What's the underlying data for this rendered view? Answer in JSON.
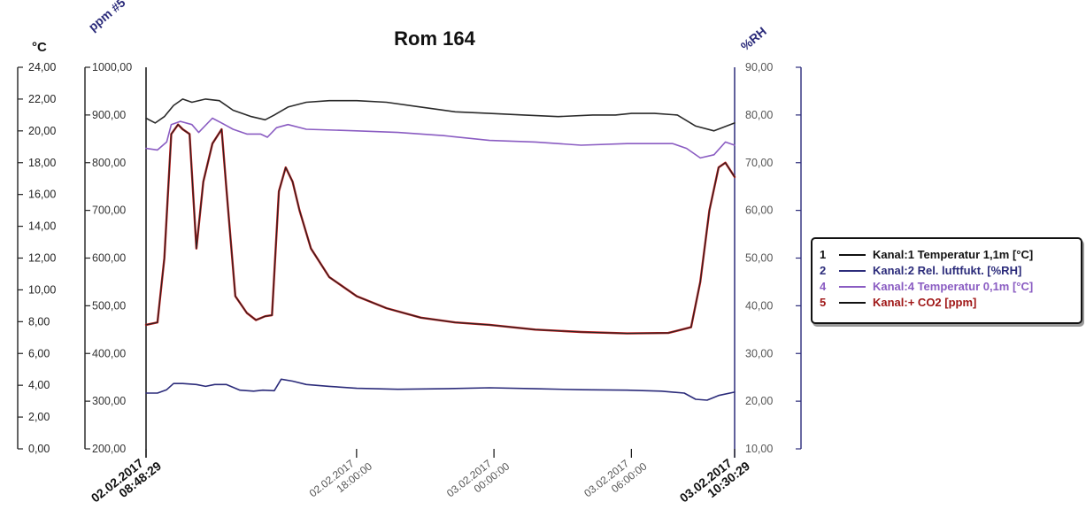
{
  "chart_data": {
    "type": "line",
    "title": "Rom 164",
    "axes": {
      "left_temp": {
        "label": "°C",
        "ticks": [
          "24,00",
          "22,00",
          "20,00",
          "18,00",
          "16,00",
          "14,00",
          "12,00",
          "10,00",
          "8,00",
          "6,00",
          "4,00",
          "2,00",
          "0,00"
        ],
        "range": [
          0,
          24
        ]
      },
      "left_ppm": {
        "label": "ppm #5",
        "ticks": [
          "1000,00",
          "900,00",
          "800,00",
          "700,00",
          "600,00",
          "500,00",
          "400,00",
          "300,00",
          "200,00"
        ],
        "range": [
          200,
          1000
        ]
      },
      "right_rh": {
        "label": "%RH",
        "ticks": [
          "90,00",
          "80,00",
          "70,00",
          "60,00",
          "50,00",
          "40,00",
          "30,00",
          "20,00",
          "10,00"
        ],
        "range": [
          10,
          90
        ]
      }
    },
    "x_labels": [
      {
        "line1": "02.02.2017",
        "line2": "08:48:29",
        "t": 0,
        "bold": true
      },
      {
        "line1": "02.02.2017",
        "line2": "18:00:00",
        "t": 9.192,
        "bold": false
      },
      {
        "line1": "03.02.2017",
        "line2": "00:00:00",
        "t": 15.192,
        "bold": false
      },
      {
        "line1": "03.02.2017",
        "line2": "06:00:00",
        "t": 21.192,
        "bold": false
      },
      {
        "line1": "03.02.2017",
        "line2": "10:30:29",
        "t": 25.7,
        "bold": true
      }
    ],
    "series": [
      {
        "name": "Kanal:1 Temperatur 1,1m [°C]",
        "number": "1",
        "axis": "left_temp",
        "color": "#2a2a2a",
        "points": [
          [
            0,
            20.8
          ],
          [
            0.4,
            20.5
          ],
          [
            0.8,
            20.9
          ],
          [
            1.2,
            21.6
          ],
          [
            1.6,
            22
          ],
          [
            2,
            21.8
          ],
          [
            2.6,
            22
          ],
          [
            3.2,
            21.9
          ],
          [
            3.8,
            21.3
          ],
          [
            4.6,
            20.9
          ],
          [
            5.2,
            20.7
          ],
          [
            5.6,
            21
          ],
          [
            6.2,
            21.5
          ],
          [
            7,
            21.8
          ],
          [
            8,
            21.9
          ],
          [
            9.2,
            21.9
          ],
          [
            10.5,
            21.8
          ],
          [
            12,
            21.5
          ],
          [
            13.5,
            21.2
          ],
          [
            15,
            21.1
          ],
          [
            16.5,
            21
          ],
          [
            18,
            20.9
          ],
          [
            19.5,
            21
          ],
          [
            20.5,
            21
          ],
          [
            21.2,
            21.1
          ],
          [
            22.2,
            21.1
          ],
          [
            23.2,
            21
          ],
          [
            24,
            20.3
          ],
          [
            24.8,
            20
          ],
          [
            25.7,
            20.5
          ]
        ]
      },
      {
        "name": "Kanal:2 Rel. luftfukt. [%RH]",
        "number": "2",
        "axis": "right_rh",
        "color": "#2b2b7a",
        "points": [
          [
            0,
            21.7
          ],
          [
            0.5,
            21.7
          ],
          [
            0.9,
            22.4
          ],
          [
            1.2,
            23.7
          ],
          [
            1.6,
            23.7
          ],
          [
            2.2,
            23.5
          ],
          [
            2.6,
            23.1
          ],
          [
            3,
            23.5
          ],
          [
            3.5,
            23.5
          ],
          [
            4.1,
            22.3
          ],
          [
            4.7,
            22.1
          ],
          [
            5.1,
            22.3
          ],
          [
            5.6,
            22.2
          ],
          [
            5.9,
            24.6
          ],
          [
            6.4,
            24.2
          ],
          [
            7,
            23.5
          ],
          [
            8,
            23.1
          ],
          [
            9.2,
            22.7
          ],
          [
            11,
            22.5
          ],
          [
            13,
            22.6
          ],
          [
            15,
            22.8
          ],
          [
            17,
            22.6
          ],
          [
            19,
            22.4
          ],
          [
            21,
            22.3
          ],
          [
            22.5,
            22.1
          ],
          [
            23.5,
            21.7
          ],
          [
            24,
            20.4
          ],
          [
            24.5,
            20.2
          ],
          [
            25,
            21.2
          ],
          [
            25.7,
            21.9
          ]
        ]
      },
      {
        "name": "Kanal:4 Temperatur 0,1m [°C]",
        "number": "4",
        "axis": "left_temp",
        "color": "#8a5cc2",
        "points": [
          [
            0,
            18.9
          ],
          [
            0.5,
            18.8
          ],
          [
            0.9,
            19.3
          ],
          [
            1.1,
            20.4
          ],
          [
            1.5,
            20.6
          ],
          [
            2,
            20.4
          ],
          [
            2.3,
            19.9
          ],
          [
            2.9,
            20.8
          ],
          [
            3.3,
            20.5
          ],
          [
            3.8,
            20.1
          ],
          [
            4.4,
            19.8
          ],
          [
            5,
            19.8
          ],
          [
            5.3,
            19.6
          ],
          [
            5.7,
            20.2
          ],
          [
            6.2,
            20.4
          ],
          [
            7,
            20.1
          ],
          [
            9.2,
            20
          ],
          [
            11,
            19.9
          ],
          [
            13,
            19.7
          ],
          [
            15,
            19.4
          ],
          [
            17,
            19.3
          ],
          [
            19,
            19.1
          ],
          [
            21,
            19.2
          ],
          [
            23,
            19.2
          ],
          [
            23.6,
            18.9
          ],
          [
            24.2,
            18.3
          ],
          [
            24.8,
            18.5
          ],
          [
            25.3,
            19.3
          ],
          [
            25.7,
            19.1
          ]
        ]
      },
      {
        "name": "Kanal:+ CO2 [ppm]",
        "number": "5",
        "axis": "left_ppm",
        "color": "#222222",
        "accent_color": "#c21a1a",
        "points": [
          [
            0,
            460
          ],
          [
            0.5,
            465
          ],
          [
            0.8,
            600
          ],
          [
            1.1,
            860
          ],
          [
            1.4,
            880
          ],
          [
            1.6,
            870
          ],
          [
            1.9,
            860
          ],
          [
            2.2,
            620
          ],
          [
            2.5,
            760
          ],
          [
            2.9,
            840
          ],
          [
            3.3,
            870
          ],
          [
            3.5,
            750
          ],
          [
            3.9,
            520
          ],
          [
            4.4,
            485
          ],
          [
            4.8,
            470
          ],
          [
            5.2,
            478
          ],
          [
            5.5,
            480
          ],
          [
            5.8,
            740
          ],
          [
            6.1,
            790
          ],
          [
            6.4,
            760
          ],
          [
            6.7,
            700
          ],
          [
            7.2,
            620
          ],
          [
            8,
            560
          ],
          [
            9.2,
            520
          ],
          [
            10.5,
            495
          ],
          [
            12,
            475
          ],
          [
            13.5,
            465
          ],
          [
            15,
            460
          ],
          [
            17,
            450
          ],
          [
            19,
            445
          ],
          [
            21,
            442
          ],
          [
            22.8,
            443
          ],
          [
            23.8,
            455
          ],
          [
            24.2,
            550
          ],
          [
            24.6,
            700
          ],
          [
            25,
            790
          ],
          [
            25.3,
            800
          ],
          [
            25.7,
            770
          ]
        ]
      }
    ],
    "legend_position": "right",
    "grid": false
  }
}
